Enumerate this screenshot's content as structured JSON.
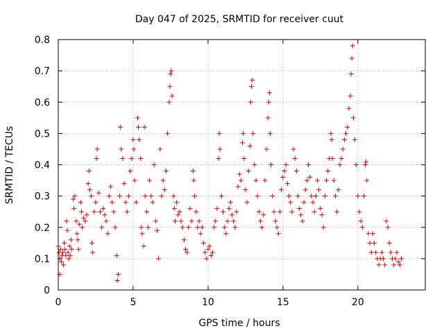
{
  "chart_data": {
    "type": "scatter",
    "title": "Day 047 of 2025, SRMTID for receiver cuut",
    "xlabel": "GPS time / hours",
    "ylabel": "SRMTID / TECUs",
    "xlim": [
      0,
      24.5
    ],
    "ylim": [
      0,
      0.8
    ],
    "xticks": [
      0,
      5,
      10,
      15,
      20
    ],
    "xtick_labels": [
      "0",
      "5",
      "10",
      "15",
      "20"
    ],
    "yticks": [
      0,
      0.1,
      0.2,
      0.3,
      0.4,
      0.5,
      0.6,
      0.7,
      0.8
    ],
    "ytick_labels": [
      "0",
      "0.1",
      "0.2",
      "0.3",
      "0.4",
      "0.5",
      "0.6",
      "0.7",
      "0.8"
    ],
    "grid": true,
    "marker": "+",
    "color": "#e00000",
    "series": [
      {
        "name": "SRMTID",
        "points": [
          [
            0.0,
            0.14
          ],
          [
            0.05,
            0.12
          ],
          [
            0.1,
            0.05
          ],
          [
            0.1,
            0.1
          ],
          [
            0.15,
            0.13
          ],
          [
            0.2,
            0.09
          ],
          [
            0.25,
            0.11
          ],
          [
            0.3,
            0.12
          ],
          [
            0.35,
            0.08
          ],
          [
            0.4,
            0.15
          ],
          [
            0.45,
            0.13
          ],
          [
            0.5,
            0.11
          ],
          [
            0.55,
            0.22
          ],
          [
            0.6,
            0.19
          ],
          [
            0.65,
            0.12
          ],
          [
            0.7,
            0.1
          ],
          [
            0.75,
            0.14
          ],
          [
            0.8,
            0.11
          ],
          [
            0.85,
            0.16
          ],
          [
            0.9,
            0.13
          ],
          [
            1.0,
            0.29
          ],
          [
            1.05,
            0.26
          ],
          [
            1.1,
            0.3
          ],
          [
            1.2,
            0.22
          ],
          [
            1.25,
            0.18
          ],
          [
            1.3,
            0.16
          ],
          [
            1.35,
            0.13
          ],
          [
            1.4,
            0.21
          ],
          [
            1.5,
            0.28
          ],
          [
            1.55,
            0.25
          ],
          [
            1.6,
            0.2
          ],
          [
            1.7,
            0.23
          ],
          [
            1.8,
            0.22
          ],
          [
            1.9,
            0.24
          ],
          [
            2.0,
            0.34
          ],
          [
            2.05,
            0.38
          ],
          [
            2.1,
            0.32
          ],
          [
            2.2,
            0.3
          ],
          [
            2.25,
            0.15
          ],
          [
            2.3,
            0.12
          ],
          [
            2.4,
            0.25
          ],
          [
            2.5,
            0.28
          ],
          [
            2.55,
            0.42
          ],
          [
            2.6,
            0.45
          ],
          [
            2.7,
            0.31
          ],
          [
            2.8,
            0.25
          ],
          [
            2.9,
            0.2
          ],
          [
            3.0,
            0.26
          ],
          [
            3.1,
            0.24
          ],
          [
            3.2,
            0.22
          ],
          [
            3.3,
            0.18
          ],
          [
            3.4,
            0.3
          ],
          [
            3.5,
            0.33
          ],
          [
            3.6,
            0.28
          ],
          [
            3.7,
            0.25
          ],
          [
            3.8,
            0.2
          ],
          [
            3.9,
            0.11
          ],
          [
            3.95,
            0.03
          ],
          [
            4.0,
            0.05
          ],
          [
            4.1,
            0.3
          ],
          [
            4.15,
            0.52
          ],
          [
            4.2,
            0.45
          ],
          [
            4.3,
            0.42
          ],
          [
            4.4,
            0.34
          ],
          [
            4.5,
            0.28
          ],
          [
            4.6,
            0.25
          ],
          [
            4.7,
            0.3
          ],
          [
            4.8,
            0.38
          ],
          [
            4.9,
            0.42
          ],
          [
            5.0,
            0.48
          ],
          [
            5.05,
            0.45
          ],
          [
            5.1,
            0.35
          ],
          [
            5.2,
            0.28
          ],
          [
            5.3,
            0.55
          ],
          [
            5.35,
            0.52
          ],
          [
            5.4,
            0.48
          ],
          [
            5.5,
            0.42
          ],
          [
            5.55,
            0.2
          ],
          [
            5.6,
            0.18
          ],
          [
            5.7,
            0.14
          ],
          [
            5.75,
            0.52
          ],
          [
            5.8,
            0.3
          ],
          [
            5.9,
            0.25
          ],
          [
            6.0,
            0.2
          ],
          [
            6.1,
            0.35
          ],
          [
            6.2,
            0.3
          ],
          [
            6.3,
            0.28
          ],
          [
            6.4,
            0.4
          ],
          [
            6.5,
            0.22
          ],
          [
            6.6,
            0.19
          ],
          [
            6.7,
            0.1
          ],
          [
            6.8,
            0.45
          ],
          [
            6.9,
            0.3
          ],
          [
            7.0,
            0.35
          ],
          [
            7.1,
            0.32
          ],
          [
            7.2,
            0.38
          ],
          [
            7.3,
            0.5
          ],
          [
            7.4,
            0.6
          ],
          [
            7.45,
            0.65
          ],
          [
            7.5,
            0.69
          ],
          [
            7.55,
            0.7
          ],
          [
            7.6,
            0.62
          ],
          [
            7.7,
            0.3
          ],
          [
            7.75,
            0.26
          ],
          [
            7.8,
            0.22
          ],
          [
            7.9,
            0.28
          ],
          [
            8.0,
            0.24
          ],
          [
            8.1,
            0.25
          ],
          [
            8.2,
            0.22
          ],
          [
            8.3,
            0.2
          ],
          [
            8.4,
            0.16
          ],
          [
            8.5,
            0.13
          ],
          [
            8.6,
            0.12
          ],
          [
            8.7,
            0.2
          ],
          [
            8.8,
            0.26
          ],
          [
            8.9,
            0.22
          ],
          [
            9.0,
            0.38
          ],
          [
            9.05,
            0.35
          ],
          [
            9.1,
            0.3
          ],
          [
            9.2,
            0.25
          ],
          [
            9.3,
            0.2
          ],
          [
            9.4,
            0.22
          ],
          [
            9.5,
            0.18
          ],
          [
            9.6,
            0.2
          ],
          [
            9.7,
            0.15
          ],
          [
            9.8,
            0.12
          ],
          [
            9.9,
            0.1
          ],
          [
            10.0,
            0.13
          ],
          [
            10.1,
            0.14
          ],
          [
            10.2,
            0.11
          ],
          [
            10.3,
            0.12
          ],
          [
            10.4,
            0.2
          ],
          [
            10.5,
            0.22
          ],
          [
            10.6,
            0.26
          ],
          [
            10.7,
            0.42
          ],
          [
            10.75,
            0.5
          ],
          [
            10.8,
            0.45
          ],
          [
            10.9,
            0.3
          ],
          [
            11.0,
            0.25
          ],
          [
            11.1,
            0.2
          ],
          [
            11.2,
            0.18
          ],
          [
            11.3,
            0.22
          ],
          [
            11.4,
            0.26
          ],
          [
            11.5,
            0.28
          ],
          [
            11.6,
            0.24
          ],
          [
            11.7,
            0.22
          ],
          [
            11.8,
            0.2
          ],
          [
            11.9,
            0.25
          ],
          [
            12.0,
            0.33
          ],
          [
            12.1,
            0.37
          ],
          [
            12.2,
            0.35
          ],
          [
            12.3,
            0.47
          ],
          [
            12.35,
            0.5
          ],
          [
            12.4,
            0.42
          ],
          [
            12.5,
            0.32
          ],
          [
            12.6,
            0.28
          ],
          [
            12.7,
            0.38
          ],
          [
            12.8,
            0.46
          ],
          [
            12.85,
            0.6
          ],
          [
            12.9,
            0.65
          ],
          [
            12.95,
            0.67
          ],
          [
            13.0,
            0.5
          ],
          [
            13.1,
            0.4
          ],
          [
            13.2,
            0.35
          ],
          [
            13.3,
            0.3
          ],
          [
            13.4,
            0.25
          ],
          [
            13.5,
            0.22
          ],
          [
            13.6,
            0.2
          ],
          [
            13.7,
            0.24
          ],
          [
            13.8,
            0.35
          ],
          [
            13.9,
            0.45
          ],
          [
            14.0,
            0.55
          ],
          [
            14.05,
            0.6
          ],
          [
            14.1,
            0.63
          ],
          [
            14.15,
            0.5
          ],
          [
            14.2,
            0.4
          ],
          [
            14.3,
            0.3
          ],
          [
            14.4,
            0.25
          ],
          [
            14.5,
            0.22
          ],
          [
            14.6,
            0.2
          ],
          [
            14.7,
            0.18
          ],
          [
            14.8,
            0.25
          ],
          [
            14.9,
            0.32
          ],
          [
            15.0,
            0.36
          ],
          [
            15.1,
            0.38
          ],
          [
            15.2,
            0.4
          ],
          [
            15.3,
            0.34
          ],
          [
            15.4,
            0.3
          ],
          [
            15.5,
            0.28
          ],
          [
            15.6,
            0.25
          ],
          [
            15.7,
            0.45
          ],
          [
            15.8,
            0.42
          ],
          [
            15.9,
            0.38
          ],
          [
            16.0,
            0.3
          ],
          [
            16.1,
            0.26
          ],
          [
            16.2,
            0.24
          ],
          [
            16.3,
            0.22
          ],
          [
            16.4,
            0.28
          ],
          [
            16.5,
            0.32
          ],
          [
            16.6,
            0.35
          ],
          [
            16.7,
            0.4
          ],
          [
            16.8,
            0.36
          ],
          [
            16.9,
            0.3
          ],
          [
            17.0,
            0.28
          ],
          [
            17.1,
            0.25
          ],
          [
            17.2,
            0.3
          ],
          [
            17.3,
            0.35
          ],
          [
            17.4,
            0.32
          ],
          [
            17.5,
            0.26
          ],
          [
            17.6,
            0.24
          ],
          [
            17.7,
            0.2
          ],
          [
            17.8,
            0.3
          ],
          [
            17.9,
            0.35
          ],
          [
            18.0,
            0.38
          ],
          [
            18.1,
            0.42
          ],
          [
            18.2,
            0.5
          ],
          [
            18.25,
            0.48
          ],
          [
            18.3,
            0.42
          ],
          [
            18.4,
            0.35
          ],
          [
            18.5,
            0.3
          ],
          [
            18.6,
            0.25
          ],
          [
            18.7,
            0.32
          ],
          [
            18.8,
            0.4
          ],
          [
            18.9,
            0.42
          ],
          [
            19.0,
            0.45
          ],
          [
            19.1,
            0.48
          ],
          [
            19.2,
            0.5
          ],
          [
            19.3,
            0.52
          ],
          [
            19.4,
            0.58
          ],
          [
            19.5,
            0.62
          ],
          [
            19.55,
            0.69
          ],
          [
            19.6,
            0.74
          ],
          [
            19.65,
            0.78
          ],
          [
            19.7,
            0.55
          ],
          [
            19.8,
            0.48
          ],
          [
            19.9,
            0.4
          ],
          [
            20.0,
            0.3
          ],
          [
            20.1,
            0.25
          ],
          [
            20.2,
            0.22
          ],
          [
            20.3,
            0.2
          ],
          [
            20.4,
            0.3
          ],
          [
            20.5,
            0.4
          ],
          [
            20.55,
            0.41
          ],
          [
            20.6,
            0.35
          ],
          [
            20.7,
            0.18
          ],
          [
            20.8,
            0.15
          ],
          [
            20.9,
            0.12
          ],
          [
            21.0,
            0.18
          ],
          [
            21.1,
            0.15
          ],
          [
            21.2,
            0.12
          ],
          [
            21.3,
            0.1
          ],
          [
            21.4,
            0.08
          ],
          [
            21.5,
            0.1
          ],
          [
            21.6,
            0.12
          ],
          [
            21.7,
            0.1
          ],
          [
            21.8,
            0.08
          ],
          [
            21.9,
            0.22
          ],
          [
            22.0,
            0.2
          ],
          [
            22.1,
            0.15
          ],
          [
            22.2,
            0.12
          ],
          [
            22.3,
            0.1
          ],
          [
            22.4,
            0.08
          ],
          [
            22.5,
            0.1
          ],
          [
            22.6,
            0.12
          ],
          [
            22.7,
            0.09
          ],
          [
            22.8,
            0.08
          ],
          [
            22.9,
            0.1
          ]
        ]
      }
    ]
  }
}
